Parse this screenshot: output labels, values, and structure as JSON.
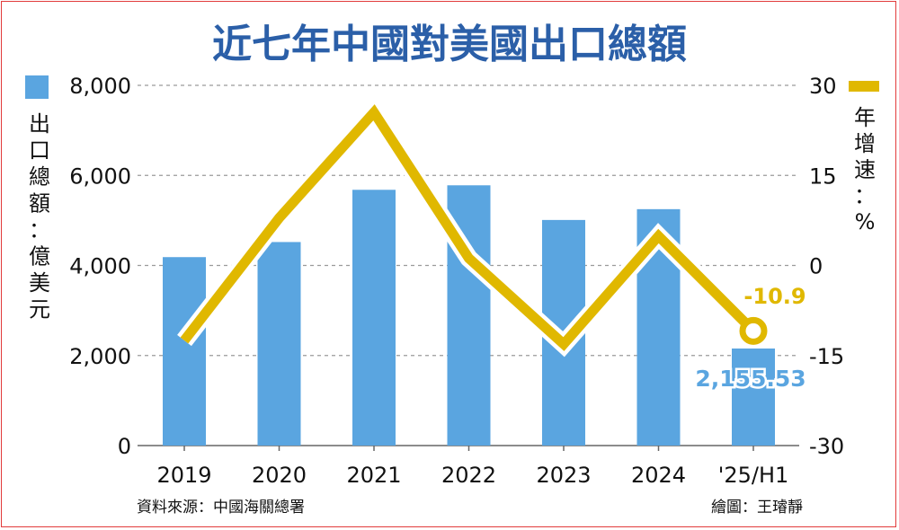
{
  "chart_data": {
    "type": "bar+line",
    "title": "近七年中國對美國出口總額",
    "categories": [
      "2019",
      "2020",
      "2021",
      "2022",
      "2023",
      "2024",
      "'25/H1"
    ],
    "series": [
      {
        "axis": "left",
        "type": "bar",
        "values": [
          4185,
          4520,
          5680,
          5780,
          5010,
          5250,
          2155.53
        ],
        "color": "#5aa5e0"
      },
      {
        "axis": "right",
        "type": "line",
        "values": [
          -12.5,
          7.9,
          25.5,
          1.2,
          -13.1,
          4.9,
          -10.9
        ],
        "color": "#e0b800"
      }
    ],
    "left_axis": {
      "label_chars": [
        "出",
        "口",
        "總",
        "額",
        "：",
        "億",
        "美",
        "元"
      ],
      "ylim": [
        0,
        8000
      ],
      "ticks": [
        "0",
        "2,000",
        "4,000",
        "6,000",
        "8,000"
      ]
    },
    "right_axis": {
      "label_chars": [
        "年",
        "增",
        "速",
        "：",
        "%"
      ],
      "ylim": [
        -30,
        30
      ],
      "ticks": [
        "-30",
        "-15",
        "0",
        "15",
        "30"
      ]
    },
    "annotations": {
      "last_growth": "-10.9",
      "last_value": "2,155.53"
    },
    "grid": true,
    "legend": "top-left and top-right swatches"
  },
  "footer": {
    "source": "資料來源：中國海關總署",
    "credit": "繪圖：王璿靜"
  },
  "colors": {
    "title": "#2b5fa8",
    "bar": "#5aa5e0",
    "line": "#e0b800",
    "grid": "#9a9a9a",
    "border": "#e23b3b"
  }
}
